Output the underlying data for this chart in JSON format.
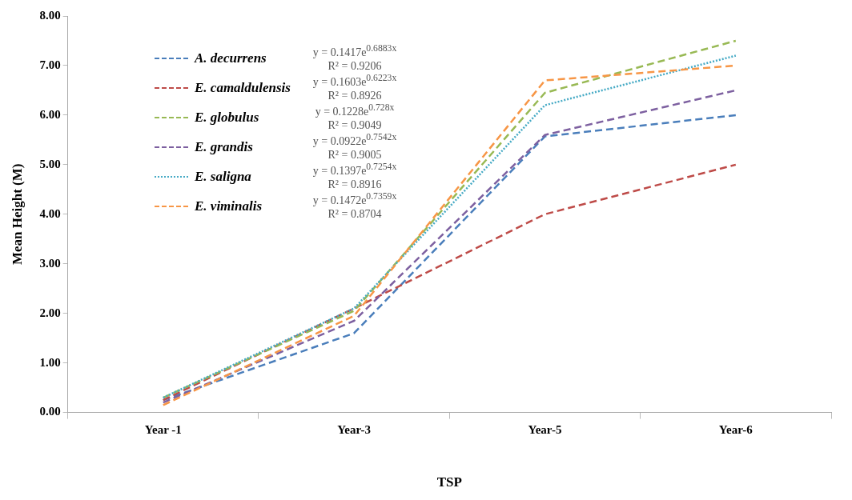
{
  "chart_data": {
    "type": "line",
    "xlabel": "TSP",
    "ylabel": "Mean Height (M)",
    "categories": [
      "Year -1",
      "Year-3",
      "Year-5",
      "Year-6"
    ],
    "ylim": [
      0,
      8
    ],
    "yticks": [
      {
        "value": 0,
        "label": "0.00"
      },
      {
        "value": 1,
        "label": "1.00"
      },
      {
        "value": 2,
        "label": "2.00"
      },
      {
        "value": 3,
        "label": "3.00"
      },
      {
        "value": 4,
        "label": "4.00"
      },
      {
        "value": 5,
        "label": "5.00"
      },
      {
        "value": 6,
        "label": "6.00"
      },
      {
        "value": 7,
        "label": "7.00"
      },
      {
        "value": 8,
        "label": "8.00"
      }
    ],
    "grid": false,
    "legend": "top left",
    "marker": "none",
    "series": [
      {
        "name": "A. decurrens",
        "color": "#4a7ebb",
        "line_style": "dashed",
        "values": [
          0.25,
          1.6,
          5.57,
          6.0
        ]
      },
      {
        "name": "E. camaldulensis",
        "color": "#be4b48",
        "line_style": "dashed",
        "values": [
          0.25,
          2.1,
          4.0,
          5.0
        ]
      },
      {
        "name": "E. globulus",
        "color": "#98b954",
        "line_style": "dashed",
        "values": [
          0.3,
          2.05,
          6.45,
          7.5
        ]
      },
      {
        "name": "E. grandis",
        "color": "#7d60a0",
        "line_style": "dashed",
        "values": [
          0.2,
          1.85,
          5.6,
          6.5
        ]
      },
      {
        "name": "E. saligna",
        "color": "#46aac5",
        "line_style": "dotted",
        "values": [
          0.3,
          2.1,
          6.2,
          7.2
        ]
      },
      {
        "name": "E. viminalis",
        "color": "#f79646",
        "line_style": "dashed",
        "values": [
          0.15,
          1.95,
          6.7,
          7.0
        ]
      }
    ],
    "annotations": [
      "y = 0.1417e$^{0.6883x}$",
      "R² = 0.9206",
      "y = 0.1603e$^{0.6223x}$",
      "R² = 0.8926",
      "y = 0.1228e$^{0.728x}$",
      "R² = 0.9049",
      "y = 0.0922e$^{0.7542x}$",
      "R² = 0.9005",
      "y = 0.1397e$^{0.7254x}$",
      "R² = 0.8916",
      "y = 0.1472e$^{0.7359x}$",
      "R² = 0.8704"
    ]
  }
}
